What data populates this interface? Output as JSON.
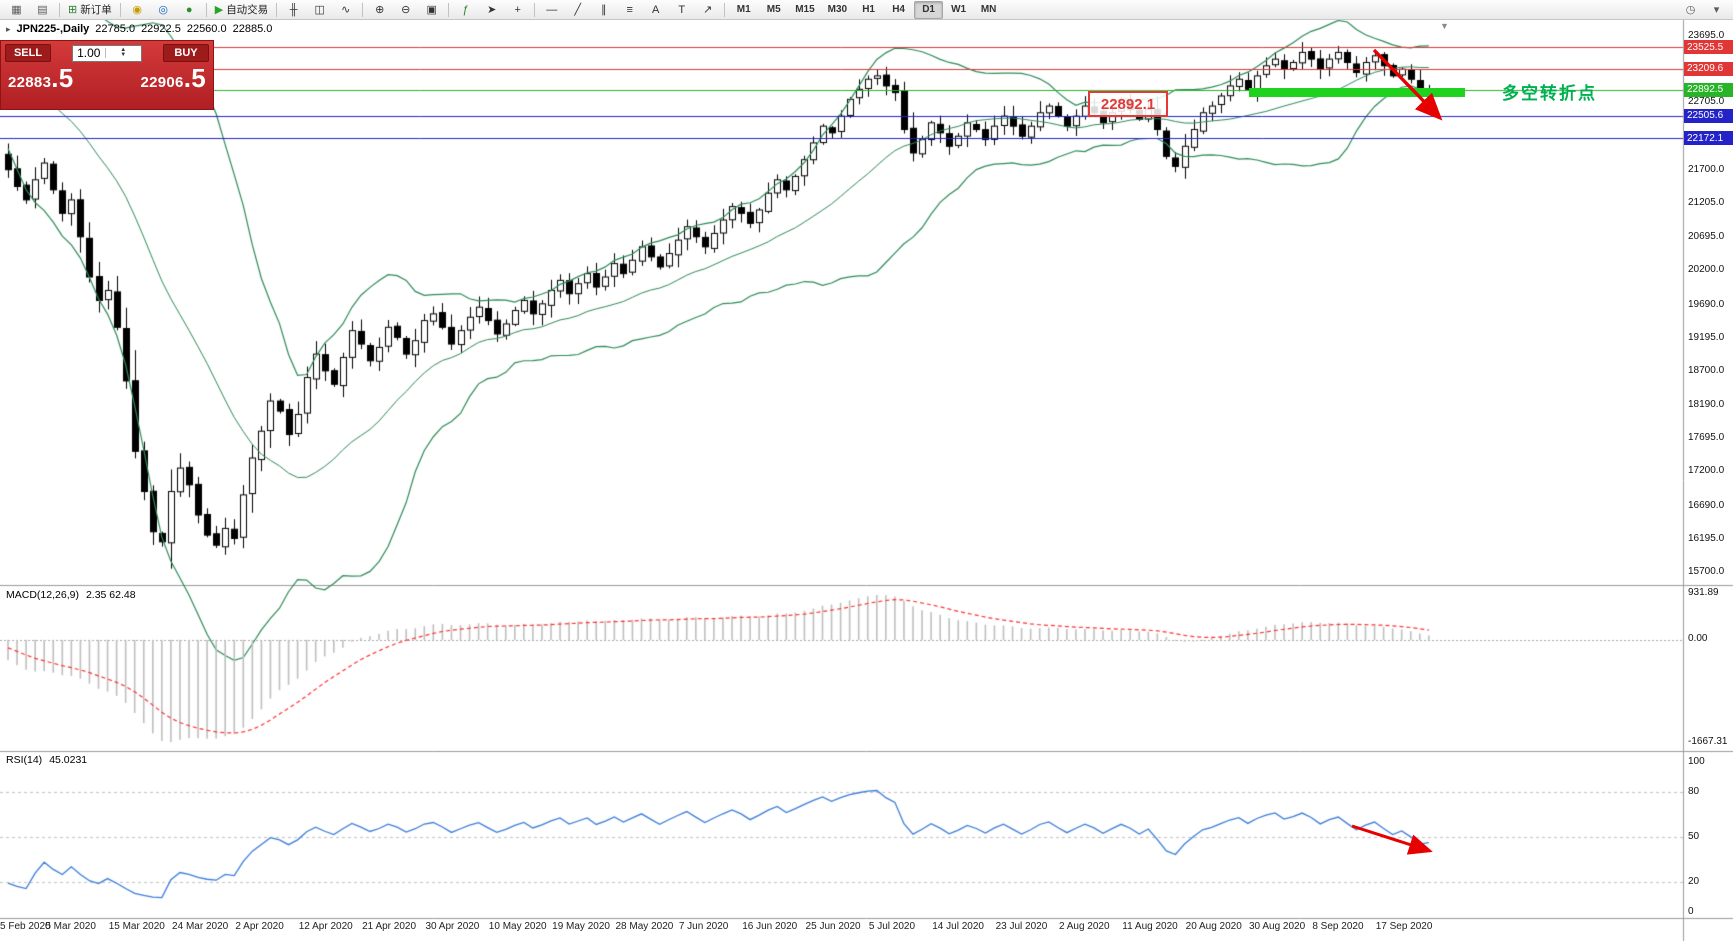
{
  "toolbar": {
    "active_timeframe": "D1",
    "timeframes": [
      "M1",
      "M5",
      "M15",
      "M30",
      "H1",
      "H4",
      "D1",
      "W1",
      "MN"
    ],
    "items": [
      {
        "name": "new-chart-icon",
        "glyph": "▦",
        "color": "#5a5a5a"
      },
      {
        "name": "chart-profiles-icon",
        "glyph": "▤",
        "color": "#5a5a5a"
      },
      {
        "sep": true
      },
      {
        "name": "new-order-button",
        "glyph": "⊞",
        "color": "#2e7d32",
        "label": "新订单"
      },
      {
        "sep": true
      },
      {
        "name": "alerts-icon",
        "glyph": "◉",
        "color": "#c79a00"
      },
      {
        "name": "market-watch-icon",
        "glyph": "◎",
        "color": "#1565c0"
      },
      {
        "name": "signals-icon",
        "glyph": "●",
        "color": "#2e8b2e"
      },
      {
        "sep": true
      },
      {
        "name": "auto-trading-button",
        "glyph": "▶",
        "color": "#28a428",
        "label": "自动交易"
      },
      {
        "sep": true
      },
      {
        "name": "bar-chart-icon",
        "glyph": "╫",
        "color": "#333333"
      },
      {
        "name": "candlestick-chart-icon",
        "glyph": "◫",
        "color": "#333333"
      },
      {
        "name": "line-chart-icon",
        "glyph": "∿",
        "color": "#333333"
      },
      {
        "sep": true
      },
      {
        "name": "zoom-in-icon",
        "glyph": "⊕",
        "color": "#333333"
      },
      {
        "name": "zoom-out-icon",
        "glyph": "⊖",
        "color": "#333333"
      },
      {
        "name": "tile-windows-icon",
        "glyph": "▣",
        "color": "#333333"
      },
      {
        "sep": true
      },
      {
        "name": "indicators-icon",
        "glyph": "ƒ",
        "color": "#2e7d32"
      },
      {
        "name": "cursor-icon",
        "glyph": "➤",
        "color": "#333333"
      },
      {
        "name": "crosshair-icon",
        "glyph": "+",
        "color": "#333333"
      },
      {
        "sep": true
      },
      {
        "name": "horizontal-line-icon",
        "glyph": "―",
        "color": "#333333"
      },
      {
        "name": "trendline-icon",
        "glyph": "╱",
        "color": "#333333"
      },
      {
        "name": "channel-icon",
        "glyph": "∥",
        "color": "#333333"
      },
      {
        "name": "fibonacci-icon",
        "glyph": "≡",
        "color": "#333333"
      },
      {
        "name": "text-icon",
        "glyph": "A",
        "color": "#333333"
      },
      {
        "name": "label-icon",
        "glyph": "T",
        "color": "#333333"
      },
      {
        "name": "arrow-objects-icon",
        "glyph": "↗",
        "color": "#333333"
      },
      {
        "sep": true
      }
    ],
    "right_items": [
      {
        "name": "period-clock-icon",
        "glyph": "◷",
        "color": "#5a5a5a"
      },
      {
        "name": "toolbar-more-icon",
        "glyph": "▾",
        "color": "#5a5a5a"
      }
    ]
  },
  "chart_header": {
    "symbol": "JPN225-,Daily",
    "open": "22785.0",
    "high": "22922.5",
    "low": "22560.0",
    "close": "22885.0"
  },
  "trade_panel": {
    "sell_label": "SELL",
    "buy_label": "BUY",
    "volume": "1.00",
    "sell_price_main": "22883",
    "sell_price_pips": ".5",
    "buy_price_main": "22906",
    "buy_price_pips": ".5"
  },
  "chart_data": {
    "type": "candlestick",
    "symbol": "JPN225-",
    "timeframe": "Daily",
    "title": "JPN225-,Daily 22785.0 22922.5 22560.0 22885.0",
    "price_range": {
      "min": 15700.0,
      "max": 23695.0
    },
    "price_ticks": [
      23695.0,
      22705.0,
      21700.0,
      21205.0,
      20695.0,
      20200.0,
      19690.0,
      19195.0,
      18700.0,
      18190.0,
      17695.0,
      17200.0,
      16690.0,
      16195.0,
      15700.0
    ],
    "hlines": [
      {
        "price": 23525.5,
        "label": "23525.5",
        "color": "#e03636"
      },
      {
        "price": 23209.6,
        "label": "23209.6",
        "color": "#e03636"
      },
      {
        "price": 22892.5,
        "label": "22892.5",
        "color": "#28b428"
      },
      {
        "price": 22505.6,
        "label": "22505.6",
        "color": "#2323c8"
      },
      {
        "price": 22172.1,
        "label": "22172.1",
        "color": "#2323c8"
      }
    ],
    "date_labels": [
      "5 Feb 2020",
      "5 Mar 2020",
      "15 Mar 2020",
      "24 Mar 2020",
      "2 Apr 2020",
      "12 Apr 2020",
      "21 Apr 2020",
      "30 Apr 2020",
      "10 May 2020",
      "19 May 2020",
      "28 May 2020",
      "7 Jun 2020",
      "16 Jun 2020",
      "25 Jun 2020",
      "5 Jul 2020",
      "14 Jul 2020",
      "23 Jul 2020",
      "2 Aug 2020",
      "11 Aug 2020",
      "20 Aug 2020",
      "30 Aug 2020",
      "8 Sep 2020",
      "17 Sep 2020"
    ],
    "label_step": 7,
    "pre_closes": [
      23290,
      23380,
      23420,
      23330,
      23390,
      23470,
      23560,
      23640,
      23690,
      23650,
      23580,
      23390,
      23240,
      23180,
      23350,
      23190,
      22950,
      22600,
      22210,
      21950
    ],
    "closes": [
      21700,
      21450,
      21250,
      21550,
      21800,
      21400,
      21050,
      21250,
      20700,
      20100,
      19750,
      19900,
      19350,
      18550,
      17500,
      16900,
      16300,
      16150,
      16900,
      17250,
      17000,
      16550,
      16250,
      16100,
      16350,
      16200,
      16850,
      17400,
      17800,
      18250,
      18100,
      17750,
      18050,
      18600,
      18950,
      18700,
      18500,
      18900,
      19300,
      19100,
      18850,
      19050,
      19350,
      19200,
      18950,
      19150,
      19450,
      19550,
      19350,
      19100,
      19300,
      19500,
      19650,
      19450,
      19250,
      19400,
      19600,
      19750,
      19550,
      19700,
      19900,
      20050,
      19850,
      20000,
      20150,
      19950,
      20100,
      20300,
      20150,
      20350,
      20550,
      20400,
      20250,
      20450,
      20650,
      20850,
      20700,
      20550,
      20750,
      20950,
      21150,
      21050,
      20900,
      21100,
      21350,
      21550,
      21400,
      21600,
      21850,
      22100,
      22350,
      22250,
      22500,
      22750,
      22900,
      23050,
      23100,
      22950,
      22850,
      22300,
      21950,
      22150,
      22400,
      22250,
      22050,
      22200,
      22400,
      22300,
      22150,
      22350,
      22500,
      22350,
      22200,
      22350,
      22550,
      22650,
      22500,
      22350,
      22500,
      22650,
      22550,
      22400,
      22550,
      22700,
      22600,
      22450,
      22600,
      22300,
      21900,
      21750,
      22050,
      22300,
      22550,
      22650,
      22800,
      22950,
      23050,
      22900,
      23100,
      23250,
      23350,
      23200,
      23300,
      23450,
      23350,
      23200,
      23350,
      23450,
      23300,
      23150,
      23300,
      23400,
      23250,
      23100,
      23200,
      23050,
      22850,
      22885
    ],
    "indicators": {
      "bollinger": {
        "period": 20,
        "deviation": 2,
        "color": "#2e8b57"
      },
      "macd": {
        "name": "MACD(12,26,9)",
        "values": "2.35 62.48",
        "scale_labels": [
          "931.89",
          "0.00",
          "-1667.31"
        ],
        "histogram_color": "#bfbfbf",
        "signal_color": "#ff3333"
      },
      "rsi": {
        "name": "RSI(14)",
        "value": "45.0231",
        "levels": [
          100,
          80,
          50,
          20,
          0
        ],
        "color": "#3c7dd9"
      }
    },
    "annotations": {
      "price_callout": "22892.1",
      "cn_note": "多空转折点",
      "arrow_color": "#e60000",
      "highlight_color": "#1ed21e"
    }
  }
}
